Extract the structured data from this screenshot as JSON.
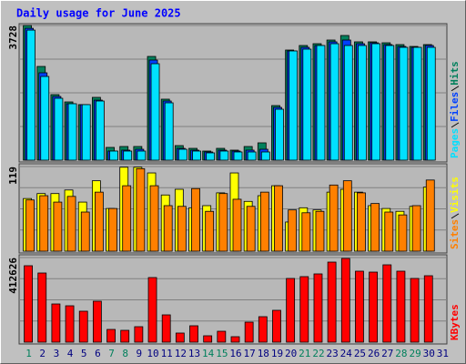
{
  "chart_data": [
    {
      "type": "bar",
      "title": "Daily usage for June 2025",
      "ylim": [
        0,
        3728
      ],
      "yticks": [
        3728
      ],
      "series": [
        {
          "name": "Hits",
          "color": "#00805c",
          "values": [
            3728,
            2594,
            1814,
            1612,
            1537,
            1738,
            353,
            378,
            378,
            2871,
            1688,
            403,
            327,
            252,
            327,
            277,
            378,
            479,
            1511,
            3048,
            3174,
            3224,
            3325,
            3451,
            3275,
            3275,
            3249,
            3199,
            3148,
            3199,
            null
          ]
        },
        {
          "name": "Files",
          "color": "#0040ff",
          "values": [
            3650,
            2418,
            1763,
            1562,
            1537,
            1662,
            252,
            277,
            302,
            2771,
            1637,
            327,
            277,
            227,
            277,
            252,
            277,
            302,
            1461,
            3023,
            3123,
            3174,
            3275,
            3325,
            3224,
            3249,
            3199,
            3148,
            3123,
            3174,
            null
          ]
        },
        {
          "name": "Pages",
          "color": "#00e0ff",
          "values": [
            3600,
            2317,
            1713,
            1562,
            1537,
            1637,
            252,
            252,
            252,
            2670,
            1587,
            302,
            252,
            202,
            252,
            227,
            227,
            227,
            1410,
            3023,
            3073,
            3174,
            3224,
            3174,
            3174,
            3224,
            3174,
            3123,
            3123,
            3123,
            null
          ]
        }
      ]
    },
    {
      "type": "bar",
      "ylim": [
        0,
        119
      ],
      "yticks": [
        119
      ],
      "series": [
        {
          "name": "Visits",
          "color": "#ffff00",
          "values": [
            74,
            81,
            81,
            86,
            69,
            99,
            60,
            118,
            118,
            110,
            79,
            87,
            61,
            64,
            82,
            110,
            70,
            78,
            92,
            41,
            61,
            58,
            83,
            87,
            83,
            64,
            60,
            56,
            63,
            90,
            null
          ]
        },
        {
          "name": "Sites",
          "color": "#ff8000",
          "values": [
            72,
            78,
            69,
            77,
            55,
            83,
            60,
            92,
            116,
            92,
            64,
            63,
            88,
            56,
            81,
            73,
            63,
            83,
            92,
            58,
            54,
            56,
            93,
            99,
            82,
            67,
            55,
            51,
            64,
            100,
            null
          ]
        }
      ]
    },
    {
      "type": "bar",
      "ylim": [
        0,
        412626
      ],
      "yticks": [
        412626
      ],
      "categories": [
        "1",
        "2",
        "3",
        "4",
        "5",
        "6",
        "7",
        "8",
        "9",
        "10",
        "11",
        "12",
        "13",
        "14",
        "15",
        "16",
        "17",
        "18",
        "19",
        "20",
        "21",
        "22",
        "23",
        "24",
        "25",
        "26",
        "27",
        "28",
        "29",
        "30",
        "31"
      ],
      "highlight_categories": [
        "1",
        "7",
        "8",
        "14",
        "15",
        "21",
        "22",
        "28",
        "29"
      ],
      "highlight_color": "#00805c",
      "series": [
        {
          "name": "KBytes",
          "color": "#ff0000",
          "values": [
            372700,
            337200,
            186300,
            177400,
            150900,
            199700,
            62100,
            57700,
            75400,
            315000,
            133100,
            44400,
            79900,
            31100,
            53200,
            26600,
            97600,
            124200,
            155300,
            310600,
            319500,
            332800,
            390400,
            408200,
            346100,
            341600,
            377100,
            346100,
            310600,
            323900,
            null
          ]
        }
      ]
    }
  ]
}
